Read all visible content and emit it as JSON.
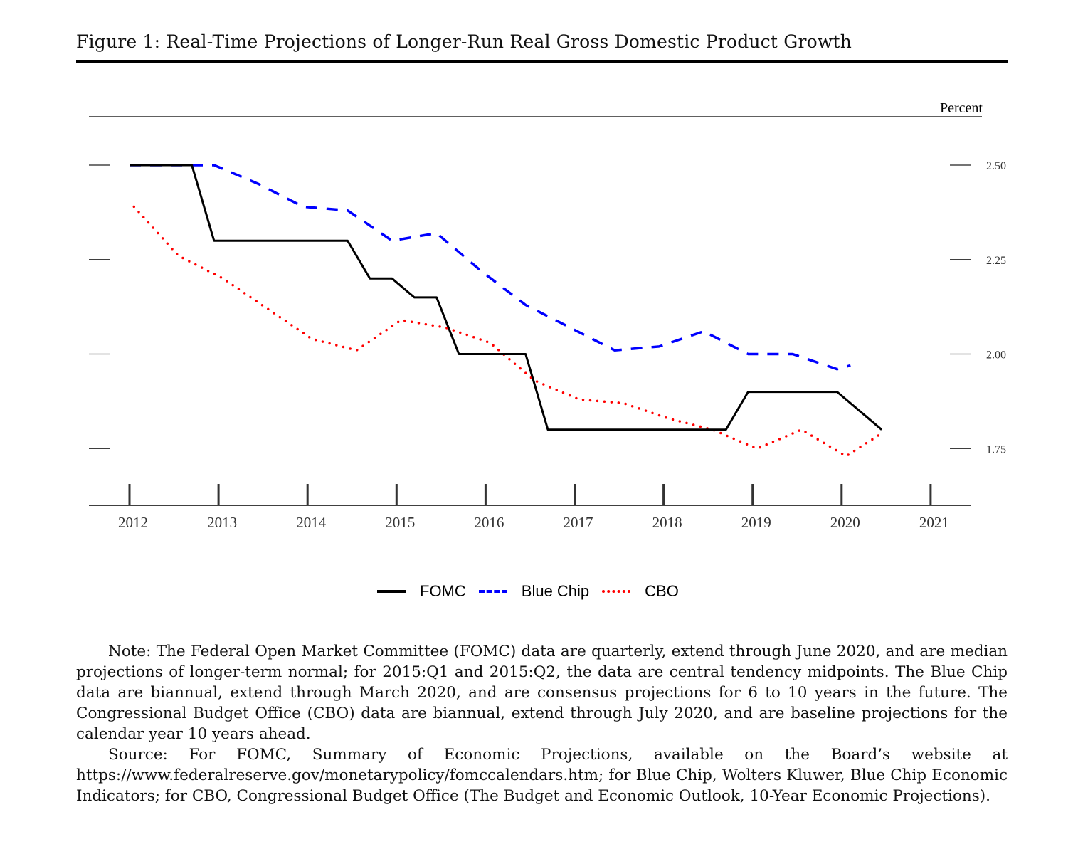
{
  "figure": {
    "title": "Figure 1: Real-Time Projections of Longer-Run Real Gross Domestic Product Growth"
  },
  "chart_data": {
    "type": "line",
    "title": "Real-Time Projections of Longer-Run Real Gross Domestic Product Growth",
    "xlabel": "",
    "ylabel": "Percent",
    "x_ticks": [
      "2012",
      "2013",
      "2014",
      "2015",
      "2016",
      "2017",
      "2018",
      "2019",
      "2020",
      "2021"
    ],
    "y_ticks": [
      "2.50",
      "2.25",
      "2.00",
      "1.75"
    ],
    "xlim": [
      2011.5,
      2021.45
    ],
    "ylim": [
      1.6,
      2.63
    ],
    "grid": false,
    "legend_position": "bottom-center",
    "series": [
      {
        "name": "FOMC",
        "color": "#000000",
        "style": "solid",
        "x": [
          2012.0,
          2012.25,
          2012.5,
          2012.7,
          2012.95,
          2013.2,
          2013.45,
          2013.7,
          2013.95,
          2014.2,
          2014.45,
          2014.7,
          2014.95,
          2015.2,
          2015.45,
          2015.7,
          2015.95,
          2016.2,
          2016.45,
          2016.7,
          2016.95,
          2017.2,
          2017.45,
          2017.7,
          2017.95,
          2018.2,
          2018.45,
          2018.7,
          2018.95,
          2019.2,
          2019.45,
          2019.7,
          2019.95,
          2020.45
        ],
        "y": [
          2.5,
          2.5,
          2.5,
          2.5,
          2.3,
          2.3,
          2.3,
          2.3,
          2.3,
          2.3,
          2.3,
          2.2,
          2.2,
          2.15,
          2.15,
          2.0,
          2.0,
          2.0,
          2.0,
          1.8,
          1.8,
          1.8,
          1.8,
          1.8,
          1.8,
          1.8,
          1.8,
          1.8,
          1.9,
          1.9,
          1.9,
          1.9,
          1.9,
          1.8
        ]
      },
      {
        "name": "Blue Chip",
        "color": "#0000ff",
        "style": "dashed",
        "x": [
          2012.0,
          2012.45,
          2012.95,
          2013.45,
          2013.95,
          2014.45,
          2014.95,
          2015.45,
          2015.95,
          2016.45,
          2016.95,
          2017.45,
          2017.95,
          2018.45,
          2018.95,
          2019.45,
          2019.95,
          2020.1
        ],
        "y": [
          2.5,
          2.5,
          2.5,
          2.45,
          2.39,
          2.38,
          2.3,
          2.32,
          2.22,
          2.13,
          2.07,
          2.01,
          2.02,
          2.06,
          2.0,
          2.0,
          1.96,
          1.97
        ]
      },
      {
        "name": "CBO",
        "color": "#ff0000",
        "style": "dotted",
        "x": [
          2012.05,
          2012.55,
          2013.05,
          2013.55,
          2014.05,
          2014.55,
          2015.05,
          2015.55,
          2016.05,
          2016.55,
          2017.05,
          2017.55,
          2018.05,
          2018.55,
          2019.05,
          2019.55,
          2020.05,
          2020.45
        ],
        "y": [
          2.39,
          2.26,
          2.2,
          2.12,
          2.04,
          2.01,
          2.09,
          2.07,
          2.03,
          1.93,
          1.88,
          1.87,
          1.83,
          1.8,
          1.75,
          1.8,
          1.73,
          1.79
        ]
      }
    ]
  },
  "legend": {
    "items": [
      {
        "label": "FOMC"
      },
      {
        "label": "Blue Chip"
      },
      {
        "label": "CBO"
      }
    ]
  },
  "notes": {
    "note": "Note: The Federal Open Market Committee (FOMC) data are quarterly, extend through June 2020, and are median projections of longer-term normal; for 2015:Q1 and 2015:Q2, the data are central tendency midpoints. The Blue Chip data are biannual, extend through March 2020, and are consensus projections for 6 to 10 years in the future. The Congressional Budget Office (CBO) data are biannual, extend through July 2020, and are baseline projections for the calendar year 10 years ahead.",
    "source": "Source: For FOMC, Summary of Economic Projections, available on the Board’s website at https://www.federalreserve.gov/monetarypolicy/fomccalendars.htm; for Blue Chip, Wolters Kluwer, Blue Chip Economic Indicators; for CBO, Congressional Budget Office (The Budget and Economic Outlook, 10-Year Economic Projections)."
  }
}
